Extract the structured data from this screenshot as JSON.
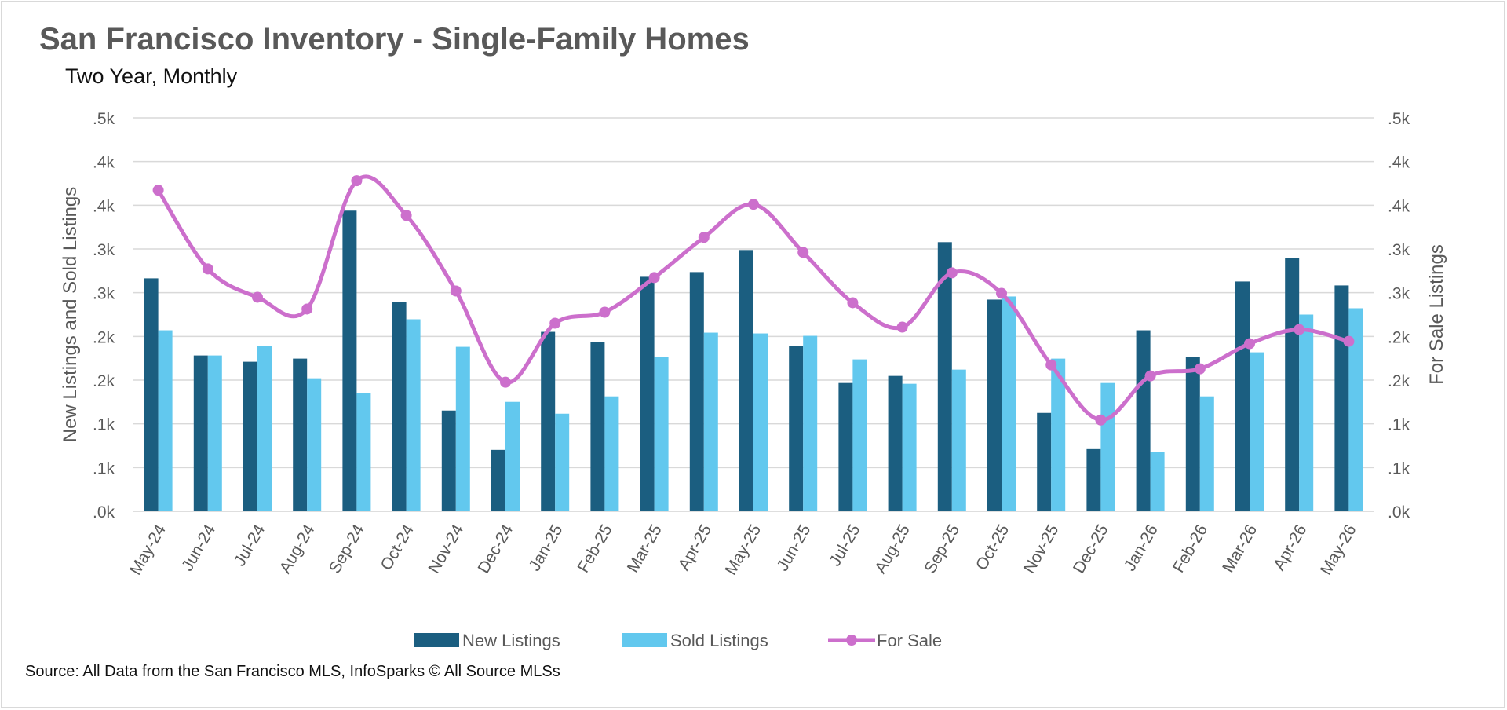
{
  "chart_data": {
    "type": "bar",
    "title": "San Francisco Inventory - Single-Family Homes",
    "subtitle": "Two Year, Monthly",
    "source": "Source: All Data from the San Francisco MLS, InfoSparks © All Source MLSs",
    "categories": [
      "May-24",
      "Jun-24",
      "Jul-24",
      "Aug-24",
      "Sep-24",
      "Oct-24",
      "Nov-24",
      "Dec-24",
      "Jan-25",
      "Feb-25",
      "Mar-25",
      "Apr-25",
      "May-25",
      "Jun-25",
      "Jul-25",
      "Aug-25",
      "Sep-25",
      "Oct-25",
      "Nov-25",
      "Dec-25",
      "Jan-26",
      "Feb-26",
      "Mar-26",
      "Apr-26",
      "May-26"
    ],
    "series": [
      {
        "name": "New Listings",
        "type": "bar",
        "axis": "left",
        "color": "#1b5e80",
        "values": [
          0.296,
          0.198,
          0.19,
          0.194,
          0.382,
          0.266,
          0.128,
          0.078,
          0.228,
          0.215,
          0.298,
          0.304,
          0.332,
          0.21,
          0.163,
          0.172,
          0.342,
          0.269,
          0.125,
          0.079,
          0.23,
          0.196,
          0.292,
          0.322,
          0.287
        ]
      },
      {
        "name": "Sold Listings",
        "type": "bar",
        "axis": "left",
        "color": "#62c8ee",
        "values": [
          0.23,
          0.198,
          0.21,
          0.169,
          0.15,
          0.244,
          0.209,
          0.139,
          0.124,
          0.146,
          0.196,
          0.227,
          0.226,
          0.223,
          0.193,
          0.162,
          0.18,
          0.273,
          0.194,
          0.163,
          0.075,
          0.146,
          0.202,
          0.25,
          0.258
        ]
      },
      {
        "name": "For Sale",
        "type": "line",
        "axis": "right",
        "color": "#cc6fcc",
        "values": [
          0.408,
          0.308,
          0.272,
          0.257,
          0.42,
          0.376,
          0.28,
          0.164,
          0.239,
          0.253,
          0.297,
          0.348,
          0.39,
          0.329,
          0.265,
          0.234,
          0.303,
          0.277,
          0.186,
          0.116,
          0.172,
          0.181,
          0.213,
          0.231,
          0.216
        ]
      }
    ],
    "ylabel": "New Listings and Sold Listings",
    "y2label": "For Sale Listings",
    "ylim": [
      0,
      0.5
    ],
    "y2lim": [
      0,
      0.5
    ],
    "yticks": [
      ".0k",
      ".1k",
      ".1k",
      ".2k",
      ".2k",
      ".3k",
      ".3k",
      ".4k",
      ".4k",
      ".5k"
    ],
    "y2ticks": [
      ".0k",
      ".1k",
      ".1k",
      ".2k",
      ".2k",
      ".3k",
      ".3k",
      ".4k",
      ".4k",
      ".5k"
    ],
    "grid": true,
    "legend": "bottom"
  }
}
